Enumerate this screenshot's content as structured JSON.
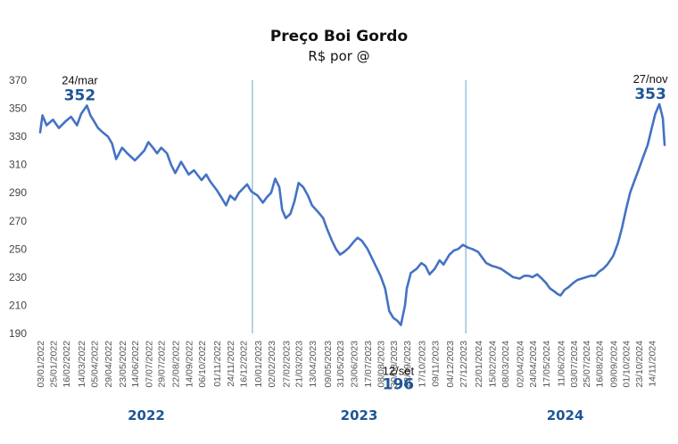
{
  "chart_data": {
    "type": "line",
    "title": "Preço Boi Gordo",
    "subtitle": "R$ por @",
    "ylim": [
      190,
      370
    ],
    "y_ticks": [
      190,
      210,
      230,
      250,
      270,
      290,
      310,
      330,
      350,
      370
    ],
    "x_ticks": [
      "03/01/2022",
      "25/01/2022",
      "16/02/2022",
      "14/03/2022",
      "05/04/2022",
      "29/04/2022",
      "23/05/2022",
      "14/06/2022",
      "07/07/2022",
      "29/07/2022",
      "22/08/2022",
      "14/09/2022",
      "06/10/2022",
      "01/11/2022",
      "24/11/2022",
      "16/12/2022",
      "10/01/2023",
      "02/02/2023",
      "27/02/2023",
      "21/03/2023",
      "13/04/2023",
      "09/05/2023",
      "31/05/2023",
      "23/06/2023",
      "17/07/2023",
      "08/08/2023",
      "30/08/2023",
      "22/09/2023",
      "17/10/2023",
      "09/11/2023",
      "04/12/2023",
      "27/12/2023",
      "22/01/2024",
      "15/02/2024",
      "08/03/2024",
      "02/04/2024",
      "24/04/2024",
      "17/05/2024",
      "11/06/2024",
      "03/07/2024",
      "25/07/2024",
      "16/08/2024",
      "09/09/2024",
      "01/10/2024",
      "23/10/2024",
      "14/11/2024"
    ],
    "year_labels": [
      "2022",
      "2023",
      "2024"
    ],
    "year_dividers": [
      "01/01/2023",
      "01/01/2024"
    ],
    "grid": false,
    "legend": "none",
    "series": [
      {
        "points": [
          [
            "03/01/2022",
            333
          ],
          [
            "07/01/2022",
            345
          ],
          [
            "14/01/2022",
            338
          ],
          [
            "25/01/2022",
            342
          ],
          [
            "04/02/2022",
            336
          ],
          [
            "16/02/2022",
            341
          ],
          [
            "25/02/2022",
            344
          ],
          [
            "07/03/2022",
            338
          ],
          [
            "14/03/2022",
            346
          ],
          [
            "24/03/2022",
            352
          ],
          [
            "30/03/2022",
            345
          ],
          [
            "05/04/2022",
            341
          ],
          [
            "12/04/2022",
            336
          ],
          [
            "20/04/2022",
            333
          ],
          [
            "29/04/2022",
            330
          ],
          [
            "06/05/2022",
            325
          ],
          [
            "13/05/2022",
            314
          ],
          [
            "23/05/2022",
            322
          ],
          [
            "01/06/2022",
            318
          ],
          [
            "14/06/2022",
            313
          ],
          [
            "21/06/2022",
            316
          ],
          [
            "30/06/2022",
            320
          ],
          [
            "07/07/2022",
            326
          ],
          [
            "15/07/2022",
            322
          ],
          [
            "22/07/2022",
            318
          ],
          [
            "29/07/2022",
            322
          ],
          [
            "08/08/2022",
            318
          ],
          [
            "15/08/2022",
            310
          ],
          [
            "22/08/2022",
            304
          ],
          [
            "01/09/2022",
            312
          ],
          [
            "14/09/2022",
            303
          ],
          [
            "23/09/2022",
            306
          ],
          [
            "06/10/2022",
            299
          ],
          [
            "14/10/2022",
            303
          ],
          [
            "21/10/2022",
            298
          ],
          [
            "01/11/2022",
            292
          ],
          [
            "10/11/2022",
            286
          ],
          [
            "17/11/2022",
            281
          ],
          [
            "24/11/2022",
            288
          ],
          [
            "02/12/2022",
            285
          ],
          [
            "09/12/2022",
            290
          ],
          [
            "16/12/2022",
            293
          ],
          [
            "23/12/2022",
            296
          ],
          [
            "30/12/2022",
            291
          ],
          [
            "10/01/2023",
            288
          ],
          [
            "19/01/2023",
            283
          ],
          [
            "26/01/2023",
            287
          ],
          [
            "02/02/2023",
            290
          ],
          [
            "09/02/2023",
            300
          ],
          [
            "16/02/2023",
            294
          ],
          [
            "21/02/2023",
            278
          ],
          [
            "27/02/2023",
            272
          ],
          [
            "07/03/2023",
            275
          ],
          [
            "14/03/2023",
            284
          ],
          [
            "21/03/2023",
            297
          ],
          [
            "29/03/2023",
            294
          ],
          [
            "06/04/2023",
            288
          ],
          [
            "13/04/2023",
            281
          ],
          [
            "24/04/2023",
            276
          ],
          [
            "02/05/2023",
            272
          ],
          [
            "09/05/2023",
            264
          ],
          [
            "17/05/2023",
            256
          ],
          [
            "24/05/2023",
            250
          ],
          [
            "31/05/2023",
            246
          ],
          [
            "07/06/2023",
            248
          ],
          [
            "15/06/2023",
            251
          ],
          [
            "23/06/2023",
            255
          ],
          [
            "30/06/2023",
            258
          ],
          [
            "07/07/2023",
            256
          ],
          [
            "17/07/2023",
            250
          ],
          [
            "24/07/2023",
            244
          ],
          [
            "01/08/2023",
            237
          ],
          [
            "08/08/2023",
            231
          ],
          [
            "16/08/2023",
            222
          ],
          [
            "23/08/2023",
            206
          ],
          [
            "30/08/2023",
            201
          ],
          [
            "06/09/2023",
            199
          ],
          [
            "12/09/2023",
            196
          ],
          [
            "19/09/2023",
            210
          ],
          [
            "22/09/2023",
            222
          ],
          [
            "29/09/2023",
            233
          ],
          [
            "09/10/2023",
            236
          ],
          [
            "17/10/2023",
            240
          ],
          [
            "24/10/2023",
            238
          ],
          [
            "31/10/2023",
            232
          ],
          [
            "09/11/2023",
            236
          ],
          [
            "17/11/2023",
            242
          ],
          [
            "24/11/2023",
            239
          ],
          [
            "04/12/2023",
            246
          ],
          [
            "12/12/2023",
            249
          ],
          [
            "19/12/2023",
            250
          ],
          [
            "27/12/2023",
            253
          ],
          [
            "05/01/2024",
            251
          ],
          [
            "12/01/2024",
            250
          ],
          [
            "22/01/2024",
            248
          ],
          [
            "29/01/2024",
            244
          ],
          [
            "05/02/2024",
            240
          ],
          [
            "15/02/2024",
            238
          ],
          [
            "23/02/2024",
            237
          ],
          [
            "01/03/2024",
            236
          ],
          [
            "08/03/2024",
            234
          ],
          [
            "15/03/2024",
            232
          ],
          [
            "22/03/2024",
            230
          ],
          [
            "02/04/2024",
            229
          ],
          [
            "10/04/2024",
            231
          ],
          [
            "17/04/2024",
            231
          ],
          [
            "24/04/2024",
            230
          ],
          [
            "02/05/2024",
            232
          ],
          [
            "10/05/2024",
            229
          ],
          [
            "17/05/2024",
            226
          ],
          [
            "24/05/2024",
            222
          ],
          [
            "31/05/2024",
            220
          ],
          [
            "06/06/2024",
            218
          ],
          [
            "11/06/2024",
            217
          ],
          [
            "18/06/2024",
            221
          ],
          [
            "25/06/2024",
            223
          ],
          [
            "03/07/2024",
            226
          ],
          [
            "10/07/2024",
            228
          ],
          [
            "17/07/2024",
            229
          ],
          [
            "25/07/2024",
            230
          ],
          [
            "02/08/2024",
            231
          ],
          [
            "09/08/2024",
            231
          ],
          [
            "16/08/2024",
            234
          ],
          [
            "23/08/2024",
            236
          ],
          [
            "30/08/2024",
            239
          ],
          [
            "09/09/2024",
            245
          ],
          [
            "17/09/2024",
            254
          ],
          [
            "24/09/2024",
            265
          ],
          [
            "01/10/2024",
            278
          ],
          [
            "08/10/2024",
            290
          ],
          [
            "15/10/2024",
            298
          ],
          [
            "23/10/2024",
            307
          ],
          [
            "30/10/2024",
            315
          ],
          [
            "07/11/2024",
            324
          ],
          [
            "14/11/2024",
            336
          ],
          [
            "20/11/2024",
            346
          ],
          [
            "27/11/2024",
            353
          ],
          [
            "03/12/2024",
            343
          ],
          [
            "06/12/2024",
            324
          ]
        ]
      }
    ],
    "annotations": [
      {
        "date_label": "24/mar",
        "value_label": "352",
        "x": "24/03/2022",
        "y": 352
      },
      {
        "date_label": "12/set",
        "value_label": "196",
        "x": "12/09/2023",
        "y": 196
      },
      {
        "date_label": "27/nov",
        "value_label": "353",
        "x": "27/11/2024",
        "y": 353
      }
    ]
  },
  "colors": {
    "line": "#4472C4",
    "divider": "#7FB3D5",
    "year_label": "#1F5597",
    "value_label": "#1F5597"
  }
}
